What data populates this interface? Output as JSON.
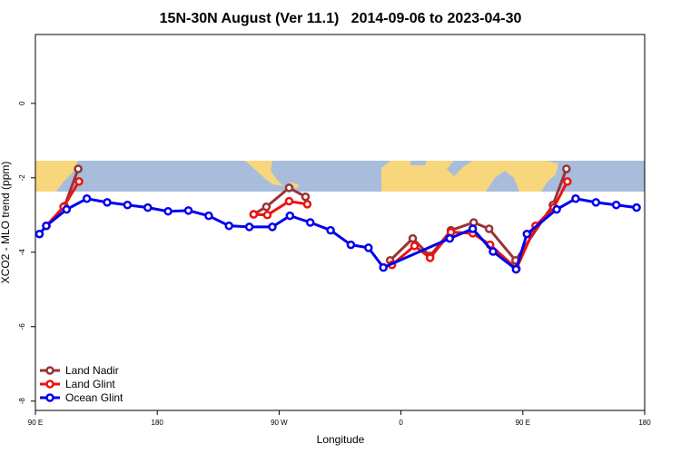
{
  "chart_data": {
    "type": "line",
    "title": "15N-30N August (Ver 11.1)   2014-09-06 to 2023-04-30",
    "x_label": "Longitude",
    "y_label": "XCO2 - MLO trend (ppm)",
    "xlim": [
      90,
      540
    ],
    "ylim": [
      -8.25,
      1.85
    ],
    "xticks": [
      {
        "value": 90,
        "label": "90 E"
      },
      180,
      {
        "value": 270,
        "label": "90 W"
      },
      {
        "value": 360,
        "label": "0"
      },
      {
        "value": 450,
        "label": "90 E"
      },
      {
        "value": 540,
        "label": "180"
      }
    ],
    "yticks": [
      0,
      -2,
      -4,
      -6,
      -8
    ],
    "grid": false,
    "legend": "bottom-left",
    "series": [
      {
        "name": "Land Nadir",
        "color": "#993333",
        "x": [
          98.1,
          111.5,
          121.6,
          null,
          251.2,
          260.6,
          277.4,
          289.5,
          null,
          352,
          368.7,
          381.5,
          396.9,
          413.7,
          425.1,
          444.6,
          472.2,
          482.2
        ],
        "values": [
          -3.29,
          -2.76,
          -1.76,
          null,
          -2.98,
          -2.78,
          -2.27,
          -2.51,
          null,
          -4.22,
          -3.63,
          -4.1,
          -3.41,
          -3.2,
          -3.37,
          -4.22,
          -2.73,
          -1.76
        ]
      },
      {
        "name": "Land Glint",
        "color": "#ee1111",
        "x": [
          98.1,
          110.8,
          122.2,
          null,
          251.2,
          261.3,
          277.4,
          290.8,
          null,
          353.3,
          370,
          381.5,
          396.9,
          413,
          425.8,
          445.3,
          459.4,
          472.8,
          482.9
        ],
        "values": [
          -3.29,
          -2.78,
          -2.1,
          null,
          -2.98,
          -3.0,
          -2.63,
          -2.71,
          null,
          -4.34,
          -3.83,
          -4.15,
          -3.46,
          -3.49,
          -3.8,
          -4.44,
          -3.29,
          -2.8,
          -2.1
        ]
      },
      {
        "name": "Ocean Glint",
        "color": "#0000ee",
        "x": [
          93,
          98,
          113,
          128,
          143,
          158,
          173,
          188,
          203,
          218,
          233,
          248,
          265,
          278,
          293,
          308,
          323,
          336,
          347,
          396,
          413,
          428,
          445,
          453,
          475,
          489,
          504,
          519,
          534
        ],
        "values": [
          -3.51,
          -3.29,
          -2.85,
          -2.56,
          -2.66,
          -2.73,
          -2.8,
          -2.9,
          -2.88,
          -3.02,
          -3.29,
          -3.32,
          -3.32,
          -3.02,
          -3.2,
          -3.41,
          -3.8,
          -3.88,
          -4.41,
          -3.63,
          -3.37,
          -3.98,
          -4.46,
          -3.51,
          -2.85,
          -2.56,
          -2.66,
          -2.73,
          -2.8
        ]
      }
    ]
  }
}
